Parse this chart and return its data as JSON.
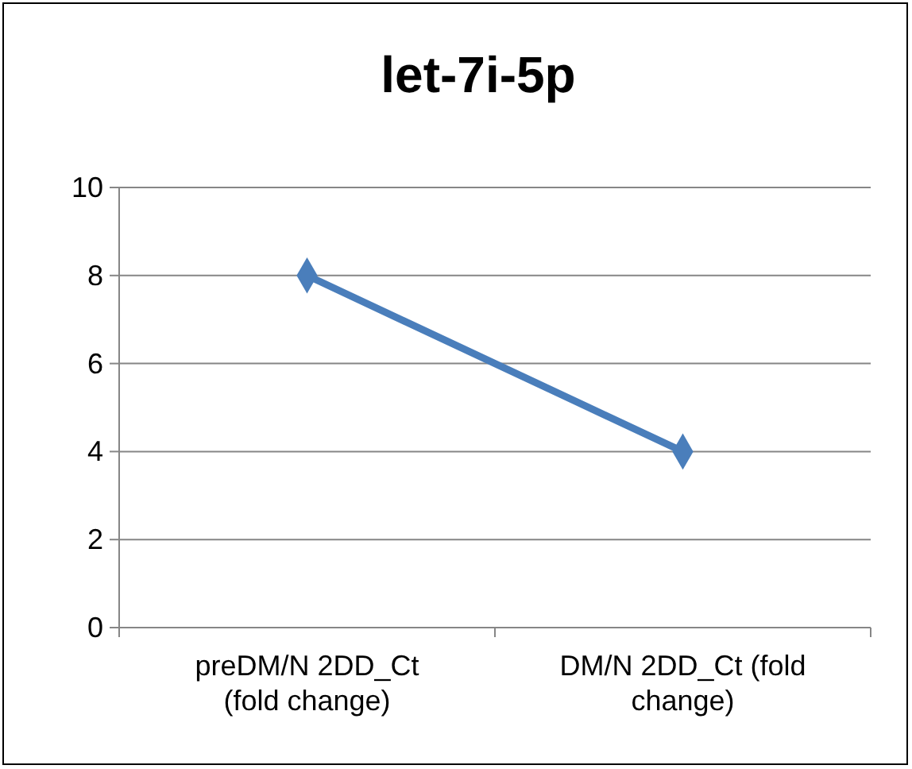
{
  "chart_data": {
    "type": "line",
    "title": "let-7i-5p",
    "categories": [
      "preDM/N 2DD_Ct\n(fold change)",
      "DM/N 2DD_Ct (fold\nchange)"
    ],
    "series": [
      {
        "color": "#4a7ebb",
        "values": [
          8,
          4
        ]
      }
    ],
    "ylim": [
      0,
      10
    ],
    "yticks": [
      0,
      2,
      4,
      6,
      8,
      10
    ],
    "grid": "y",
    "marker": "diamond",
    "line_style": "solid"
  }
}
